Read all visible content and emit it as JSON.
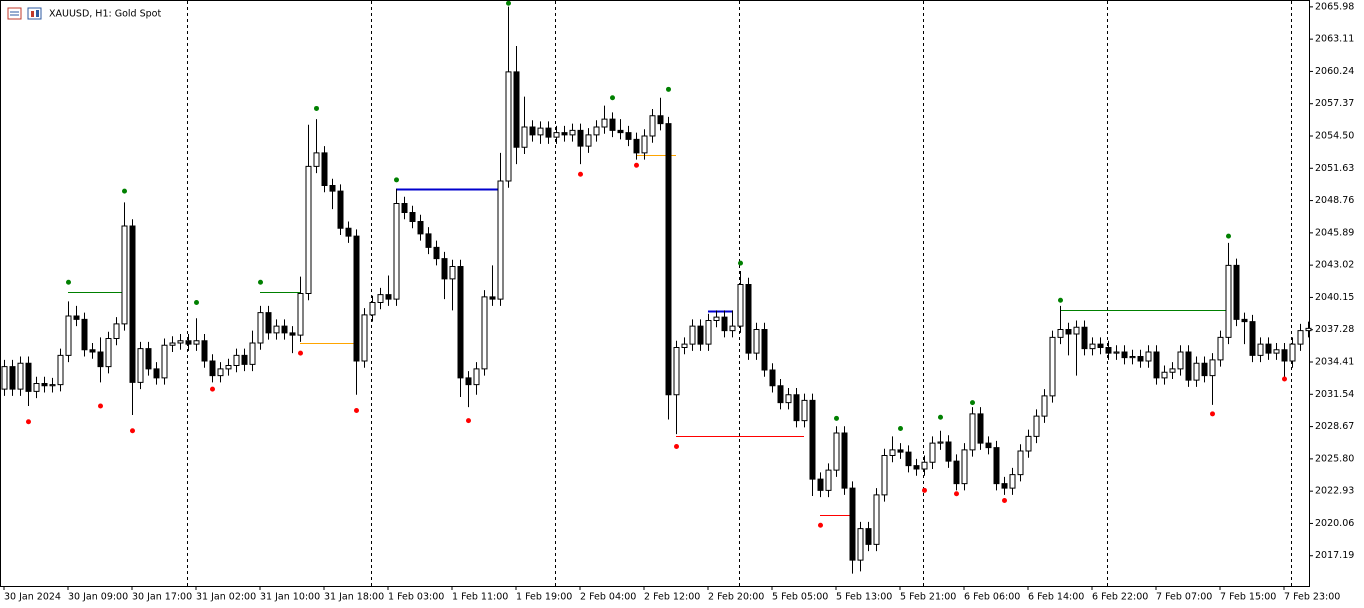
{
  "chart_data": {
    "type": "candlestick",
    "title": "XAUUSD, H1:  Gold Spot",
    "categories": [
      "30 Jan 2024",
      null,
      null,
      null,
      null,
      null,
      null,
      null,
      "30 Jan 09:00",
      null,
      null,
      null,
      null,
      null,
      null,
      null,
      "30 Jan 17:00",
      null,
      null,
      null,
      null,
      null,
      null,
      null,
      "31 Jan 02:00",
      null,
      null,
      null,
      null,
      null,
      null,
      null,
      "31 Jan 10:00",
      null,
      null,
      null,
      null,
      null,
      null,
      null,
      "31 Jan 18:00",
      null,
      null,
      null,
      null,
      null,
      null,
      null,
      "1 Feb 03:00",
      null,
      null,
      null,
      null,
      null,
      null,
      null,
      "1 Feb 11:00",
      null,
      null,
      null,
      null,
      null,
      null,
      null,
      "1 Feb 19:00",
      null,
      null,
      null,
      null,
      null,
      null,
      null,
      "2 Feb 04:00",
      null,
      null,
      null,
      null,
      null,
      null,
      null,
      "2 Feb 12:00",
      null,
      null,
      null,
      null,
      null,
      null,
      null,
      "2 Feb 20:00",
      null,
      null,
      null,
      null,
      null,
      null,
      null,
      "5 Feb 05:00",
      null,
      null,
      null,
      null,
      null,
      null,
      null,
      "5 Feb 13:00",
      null,
      null,
      null,
      null,
      null,
      null,
      null,
      "5 Feb 21:00",
      null,
      null,
      null,
      null,
      null,
      null,
      null,
      "6 Feb 06:00",
      null,
      null,
      null,
      null,
      null,
      null,
      null,
      "6 Feb 14:00",
      null,
      null,
      null,
      null,
      null,
      null,
      null,
      "6 Feb 22:00",
      null,
      null,
      null,
      null,
      null,
      null,
      null,
      "7 Feb 07:00",
      null,
      null,
      null,
      null,
      null,
      null,
      null,
      "7 Feb 15:00",
      null,
      null,
      null,
      null,
      null,
      null,
      null,
      "7 Feb 23:00",
      null,
      null,
      null
    ],
    "open": [
      2032.0,
      2034.0,
      2032.0,
      2034.3,
      2031.8,
      2032.5,
      2032.3,
      2032.4,
      2035.0,
      2038.5,
      2038.2,
      2035.5,
      2035.3,
      2034.0,
      2036.5,
      2037.8,
      2046.5,
      2032.6,
      2035.6,
      2033.8,
      2033.0,
      2035.9,
      2036.1,
      2036.3,
      2036.0,
      2036.3,
      2034.5,
      2033.2,
      2033.8,
      2034.1,
      2035.0,
      2034.2,
      2036.1,
      2038.8,
      2037.0,
      2037.6,
      2037.0,
      2036.8,
      2040.5,
      2051.8,
      2053.0,
      2050.1,
      2049.6,
      2046.3,
      2045.6,
      2034.5,
      2038.6,
      2039.7,
      2040.4,
      2040.0,
      2048.5,
      2047.7,
      2046.9,
      2045.8,
      2044.6,
      2043.6,
      2041.8,
      2042.9,
      2033.0,
      2032.4,
      2033.8,
      2040.2,
      2040.0,
      2050.5,
      2060.2,
      2053.5,
      2055.3,
      2054.6,
      2055.2,
      2054.4,
      2054.8,
      2054.6,
      2055.0,
      2053.6,
      2054.6,
      2055.3,
      2056.0,
      2055.0,
      2054.8,
      2054.2,
      2053.0,
      2054.5,
      2056.3,
      2055.6,
      2031.5,
      2035.7,
      2036.0,
      2037.6,
      2036.0,
      2038.1,
      2038.4,
      2037.2,
      2037.6,
      2041.3,
      2035.2,
      2037.3,
      2033.7,
      2032.3,
      2030.8,
      2031.5,
      2029.2,
      2031.0,
      2024.0,
      2023.0,
      2024.8,
      2028.1,
      2023.2,
      2016.8,
      2019.6,
      2018.2,
      2022.6,
      2026.1,
      2026.6,
      2026.4,
      2025.2,
      2024.9,
      2025.5,
      2027.2,
      2027.3,
      2025.6,
      2023.6,
      2026.6,
      2029.8,
      2027.2,
      2026.8,
      2023.6,
      2023.2,
      2024.4,
      2026.5,
      2027.8,
      2029.6,
      2031.4,
      2036.6,
      2037.3,
      2036.9,
      2037.5,
      2035.6,
      2036.0,
      2035.7,
      2035.2,
      2035.3,
      2034.8,
      2034.9,
      2034.5,
      2035.3,
      2033.0,
      2033.5,
      2033.8,
      2035.3,
      2032.8,
      2034.3,
      2033.2,
      2034.6,
      2036.6,
      2043.0,
      2038.2,
      2038.0,
      2035.0,
      2036.0,
      2035.2,
      2035.5,
      2034.5,
      2036.0,
      2037.2
    ],
    "high": [
      2034.6,
      2034.6,
      2034.9,
      2034.9,
      2033.1,
      2033.1,
      2033.0,
      2035.6,
      2039.8,
      2039.4,
      2038.8,
      2036.1,
      2036.6,
      2037.1,
      2038.4,
      2048.6,
      2047.1,
      2036.2,
      2036.2,
      2034.4,
      2036.5,
      2036.7,
      2036.9,
      2036.9,
      2038.3,
      2036.9,
      2035.1,
      2034.4,
      2034.7,
      2035.6,
      2035.6,
      2037.2,
      2039.4,
      2039.4,
      2038.2,
      2038.2,
      2037.6,
      2042.0,
      2055.5,
      2056.0,
      2053.6,
      2050.7,
      2050.2,
      2046.9,
      2046.2,
      2039.2,
      2040.3,
      2041.0,
      2042.1,
      2049.8,
      2049.1,
      2048.3,
      2047.5,
      2046.4,
      2045.2,
      2044.2,
      2043.5,
      2043.5,
      2033.6,
      2034.4,
      2040.8,
      2043.0,
      2053.0,
      2066.0,
      2062.5,
      2058.0,
      2055.9,
      2055.8,
      2055.8,
      2055.4,
      2055.4,
      2055.6,
      2055.6,
      2055.2,
      2055.9,
      2057.2,
      2056.6,
      2056.0,
      2055.4,
      2054.8,
      2055.1,
      2056.9,
      2057.9,
      2056.2,
      2036.3,
      2036.6,
      2038.2,
      2038.2,
      2038.7,
      2039.0,
      2039.0,
      2039.0,
      2042.5,
      2041.9,
      2037.9,
      2037.9,
      2034.3,
      2032.9,
      2032.1,
      2032.1,
      2031.6,
      2031.6,
      2024.6,
      2025.4,
      2028.7,
      2028.7,
      2023.8,
      2020.2,
      2020.2,
      2023.2,
      2026.7,
      2027.8,
      2027.2,
      2027.0,
      2025.8,
      2026.1,
      2027.8,
      2028.3,
      2027.9,
      2026.2,
      2027.2,
      2030.4,
      2030.4,
      2027.8,
      2027.4,
      2024.2,
      2025.0,
      2027.1,
      2028.4,
      2030.2,
      2032.0,
      2037.2,
      2039.4,
      2037.9,
      2038.1,
      2038.1,
      2036.6,
      2036.6,
      2036.3,
      2035.9,
      2035.9,
      2035.5,
      2035.5,
      2035.9,
      2035.9,
      2034.1,
      2034.4,
      2035.9,
      2035.9,
      2034.9,
      2034.9,
      2035.2,
      2037.2,
      2045.0,
      2043.6,
      2038.8,
      2038.6,
      2036.6,
      2036.6,
      2036.1,
      2036.1,
      2036.6,
      2037.8,
      2038.0
    ],
    "low": [
      2031.4,
      2031.4,
      2031.4,
      2030.5,
      2031.2,
      2031.7,
      2031.7,
      2031.8,
      2034.4,
      2037.6,
      2034.9,
      2034.7,
      2032.6,
      2033.4,
      2035.9,
      2037.2,
      2029.7,
      2032.0,
      2033.2,
      2032.4,
      2032.4,
      2035.3,
      2035.5,
      2035.4,
      2035.4,
      2033.9,
      2032.6,
      2032.6,
      2033.2,
      2033.5,
      2033.6,
      2033.6,
      2035.5,
      2036.4,
      2036.4,
      2036.4,
      2035.2,
      2036.2,
      2039.9,
      2051.2,
      2049.5,
      2048.0,
      2045.7,
      2045.0,
      2031.5,
      2033.9,
      2038.0,
      2039.1,
      2039.4,
      2039.4,
      2047.1,
      2046.3,
      2045.2,
      2044.0,
      2043.0,
      2040.0,
      2039.0,
      2031.3,
      2030.4,
      2031.5,
      2033.2,
      2039.4,
      2039.4,
      2049.9,
      2052.0,
      2052.9,
      2054.0,
      2053.8,
      2053.8,
      2053.8,
      2054.0,
      2054.0,
      2052.0,
      2053.0,
      2054.0,
      2054.7,
      2054.4,
      2054.2,
      2053.6,
      2052.4,
      2052.4,
      2053.9,
      2055.0,
      2029.3,
      2028.0,
      2035.1,
      2035.4,
      2035.4,
      2035.4,
      2037.5,
      2036.6,
      2036.6,
      2037.0,
      2034.6,
      2034.6,
      2033.1,
      2031.7,
      2030.2,
      2030.2,
      2028.6,
      2028.6,
      2022.5,
      2022.4,
      2022.4,
      2024.2,
      2022.6,
      2015.6,
      2015.8,
      2017.6,
      2017.6,
      2022.0,
      2025.5,
      2025.8,
      2024.6,
      2024.3,
      2024.3,
      2024.9,
      2026.6,
      2025.0,
      2023.0,
      2023.0,
      2026.0,
      2026.6,
      2026.2,
      2023.0,
      2022.6,
      2022.6,
      2023.8,
      2025.9,
      2027.2,
      2029.0,
      2030.8,
      2036.0,
      2035.0,
      2033.2,
      2035.0,
      2035.0,
      2035.1,
      2034.6,
      2034.6,
      2034.2,
      2034.2,
      2033.9,
      2033.9,
      2032.4,
      2032.4,
      2032.9,
      2033.2,
      2032.2,
      2032.2,
      2032.6,
      2030.6,
      2034.0,
      2036.0,
      2037.6,
      2036.0,
      2034.4,
      2034.4,
      2034.6,
      2034.6,
      2033.0,
      2033.9,
      2035.4,
      2036.6
    ],
    "close": [
      2034.0,
      2032.0,
      2034.3,
      2031.8,
      2032.5,
      2032.3,
      2032.4,
      2035.0,
      2038.5,
      2038.2,
      2035.5,
      2035.3,
      2034.0,
      2036.5,
      2037.8,
      2046.5,
      2032.6,
      2035.6,
      2033.8,
      2033.0,
      2035.9,
      2036.1,
      2036.3,
      2036.0,
      2036.3,
      2034.5,
      2033.2,
      2033.8,
      2034.1,
      2035.0,
      2034.2,
      2036.1,
      2038.8,
      2037.0,
      2037.6,
      2037.0,
      2036.8,
      2040.5,
      2051.8,
      2053.0,
      2050.1,
      2049.6,
      2046.3,
      2045.6,
      2034.5,
      2038.6,
      2039.7,
      2040.4,
      2040.0,
      2048.5,
      2047.7,
      2046.9,
      2045.8,
      2044.6,
      2043.6,
      2041.8,
      2042.9,
      2033.0,
      2032.4,
      2033.8,
      2040.2,
      2040.0,
      2050.5,
      2060.2,
      2053.5,
      2055.3,
      2054.6,
      2055.2,
      2054.4,
      2054.8,
      2054.6,
      2055.0,
      2053.6,
      2054.6,
      2055.3,
      2056.0,
      2055.0,
      2054.8,
      2054.2,
      2053.0,
      2054.5,
      2056.3,
      2055.6,
      2031.5,
      2035.7,
      2036.0,
      2037.6,
      2036.0,
      2038.1,
      2038.4,
      2037.2,
      2037.6,
      2041.3,
      2035.2,
      2037.3,
      2033.7,
      2032.3,
      2030.8,
      2031.5,
      2029.2,
      2031.0,
      2024.0,
      2023.0,
      2024.8,
      2028.1,
      2023.2,
      2016.8,
      2019.6,
      2018.2,
      2022.6,
      2026.1,
      2026.6,
      2026.4,
      2025.2,
      2024.9,
      2025.5,
      2027.2,
      2027.3,
      2025.6,
      2023.6,
      2026.6,
      2029.8,
      2027.2,
      2026.8,
      2023.6,
      2023.2,
      2024.4,
      2026.5,
      2027.8,
      2029.6,
      2031.4,
      2036.6,
      2037.3,
      2036.9,
      2037.5,
      2035.6,
      2036.0,
      2035.7,
      2035.2,
      2035.3,
      2034.8,
      2034.9,
      2034.5,
      2035.3,
      2033.0,
      2033.5,
      2033.8,
      2035.3,
      2032.8,
      2034.3,
      2033.2,
      2034.6,
      2036.6,
      2043.0,
      2038.2,
      2038.0,
      2035.0,
      2036.0,
      2035.2,
      2035.5,
      2034.5,
      2036.0,
      2037.2,
      2037.4
    ],
    "up_color": "#ffffff",
    "down_color": "#000000",
    "wick_color": "#000000",
    "ylim": [
      2014.5,
      2066.5
    ],
    "yticks": [
      2065.98,
      2063.11,
      2060.24,
      2057.37,
      {
        "value": 2054.5,
        "label": "2054.50"
      },
      2051.63,
      2048.76,
      2045.89,
      2043.02,
      2040.15,
      2037.28,
      2034.41,
      2031.54,
      2028.67,
      {
        "value": 2025.8,
        "label": "2025.80"
      },
      2022.93,
      2020.06,
      2017.19
    ],
    "fractals": [
      {
        "color": "#008000",
        "indices": [
          8,
          15,
          24,
          32,
          39,
          49,
          63,
          76,
          83,
          92,
          104,
          112,
          117,
          121,
          132,
          153
        ],
        "values": [
          2041.5,
          2049.6,
          2039.7,
          2041.5,
          2056.95,
          2050.6,
          2066.3,
          2057.9,
          2058.65,
          2043.2,
          2029.4,
          2028.5,
          2029.5,
          2030.8,
          2039.9,
          2045.6
        ]
      },
      {
        "color": "#ff0000",
        "indices": [
          3,
          12,
          16,
          26,
          37,
          44,
          58,
          72,
          79,
          84,
          102,
          115,
          119,
          125,
          151,
          160
        ],
        "values": [
          2029.1,
          2030.5,
          2028.3,
          2032.0,
          2035.2,
          2030.1,
          2029.2,
          2051.1,
          2051.9,
          2026.9,
          2019.9,
          2023.0,
          2022.7,
          2022.1,
          2029.8,
          2032.9
        ]
      }
    ],
    "levels": [
      {
        "color": "#008000",
        "start": 8,
        "end": 15,
        "value": 2040.6
      },
      {
        "color": "#008000",
        "start": 32,
        "end": 37,
        "value": 2040.6
      },
      {
        "color": "#ffa500",
        "start": 37,
        "end": 44,
        "value": 2036.1
      },
      {
        "color": "#0000cd",
        "start": 49,
        "end": 62,
        "value": 2049.8
      },
      {
        "color": "#ffa500",
        "start": 79,
        "end": 84,
        "value": 2052.8
      },
      {
        "color": "#0000cd",
        "start": 88,
        "end": 91,
        "value": 2038.9
      },
      {
        "color": "#ff0000",
        "start": 84,
        "end": 100,
        "value": 2027.8
      },
      {
        "color": "#ff0000",
        "start": 102,
        "end": 106,
        "value": 2020.8
      },
      {
        "color": "#008000",
        "start": 132,
        "end": 153,
        "value": 2039.0
      }
    ]
  }
}
